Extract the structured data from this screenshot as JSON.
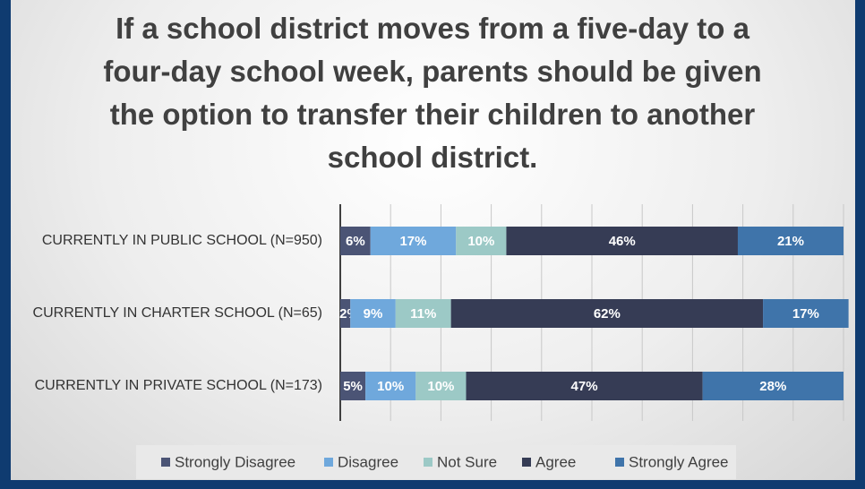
{
  "chart_data": {
    "type": "stacked-barh",
    "title": "If a school district moves from a five-day to a four-day school week, parents should be given the option to transfer their children to another school district.",
    "categories": [
      "CURRENTLY IN PUBLIC SCHOOL (N=950)",
      "CURRENTLY IN CHARTER SCHOOL (N=65)",
      "CURRENTLY IN PRIVATE SCHOOL (N=173)"
    ],
    "series": [
      {
        "name": "Strongly Disagree",
        "color": "#4b5475",
        "values": [
          6,
          2,
          5
        ],
        "value_labels": [
          "6%",
          "2%",
          "5%"
        ]
      },
      {
        "name": "Disagree",
        "color": "#6fa8dc",
        "values": [
          17,
          9,
          10
        ],
        "value_labels": [
          "17%",
          "9%",
          "10%"
        ]
      },
      {
        "name": "Not Sure",
        "color": "#9cc9c6",
        "values": [
          10,
          11,
          10
        ],
        "value_labels": [
          "10%",
          "11%",
          "10%"
        ]
      },
      {
        "name": "Agree",
        "color": "#363c55",
        "values": [
          46,
          62,
          47
        ],
        "value_labels": [
          "46%",
          "62%",
          "47%"
        ]
      },
      {
        "name": "Strongly Agree",
        "color": "#3f74aa",
        "values": [
          21,
          17,
          28
        ],
        "value_labels": [
          "21%",
          "17%",
          "28%"
        ]
      }
    ],
    "xlim": [
      0,
      100
    ],
    "xticks": [
      0,
      10,
      20,
      30,
      40,
      50,
      60,
      70,
      80,
      90,
      100
    ],
    "grid": true,
    "legend": "bottom"
  }
}
